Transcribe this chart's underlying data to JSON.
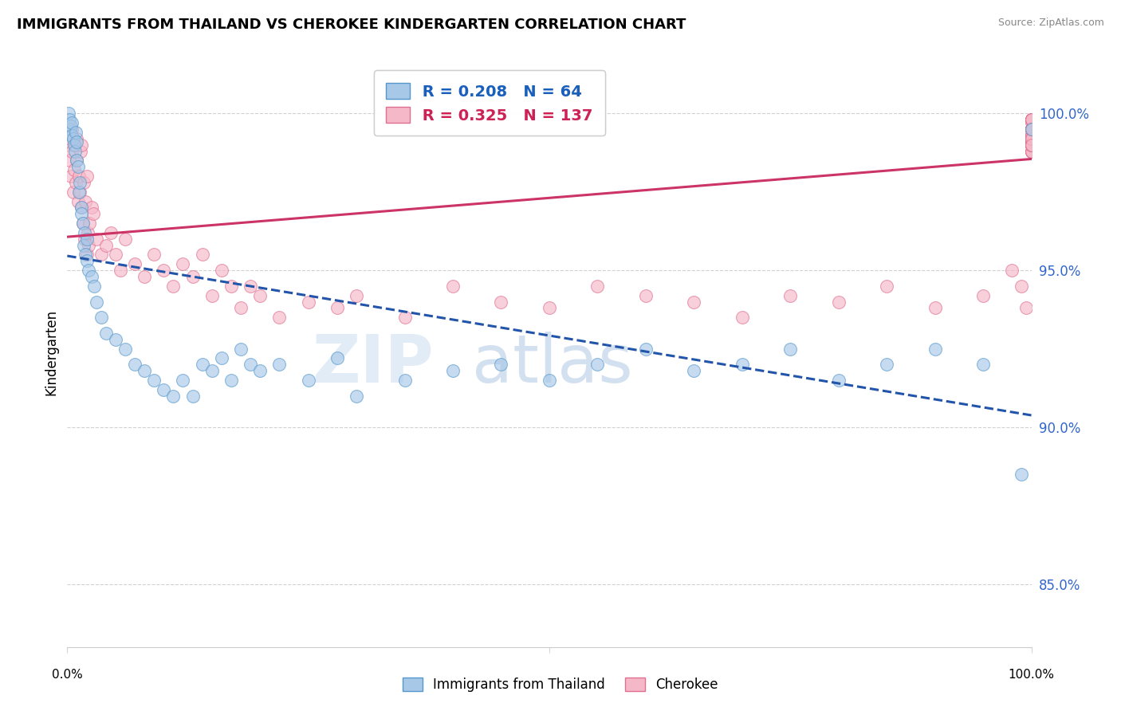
{
  "title": "IMMIGRANTS FROM THAILAND VS CHEROKEE KINDERGARTEN CORRELATION CHART",
  "source": "Source: ZipAtlas.com",
  "ylabel": "Kindergarten",
  "yticks": [
    85.0,
    90.0,
    95.0,
    100.0
  ],
  "xmin": 0.0,
  "xmax": 100.0,
  "ymin": 83.0,
  "ymax": 101.8,
  "blue_label": "Immigrants from Thailand",
  "pink_label": "Cherokee",
  "blue_R": 0.208,
  "blue_N": 64,
  "pink_R": 0.325,
  "pink_N": 137,
  "blue_color": "#a8c8e8",
  "blue_edge": "#5599cc",
  "pink_color": "#f5b8c8",
  "pink_edge": "#e07090",
  "trendline_blue": "#2255aa",
  "trendline_pink": "#cc3366",
  "legend_R_blue_color": "#1a5fbb",
  "legend_R_pink_color": "#cc2255",
  "blue_x": [
    0.1,
    0.2,
    0.3,
    0.4,
    0.5,
    0.5,
    0.6,
    0.7,
    0.8,
    0.9,
    1.0,
    1.0,
    1.1,
    1.2,
    1.3,
    1.5,
    1.5,
    1.6,
    1.7,
    1.8,
    1.9,
    2.0,
    2.0,
    2.2,
    2.5,
    2.8,
    3.0,
    3.5,
    4.0,
    5.0,
    6.0,
    7.0,
    8.0,
    9.0,
    10.0,
    11.0,
    12.0,
    13.0,
    14.0,
    15.0,
    16.0,
    17.0,
    18.0,
    19.0,
    20.0,
    22.0,
    25.0,
    28.0,
    30.0,
    35.0,
    40.0,
    45.0,
    50.0,
    55.0,
    60.0,
    65.0,
    70.0,
    75.0,
    80.0,
    85.0,
    90.0,
    95.0,
    99.0,
    100.0
  ],
  "blue_y": [
    100.0,
    99.8,
    99.5,
    99.6,
    99.7,
    99.3,
    99.2,
    99.0,
    98.8,
    99.4,
    98.5,
    99.1,
    98.3,
    97.5,
    97.8,
    97.0,
    96.8,
    96.5,
    95.8,
    96.2,
    95.5,
    95.3,
    96.0,
    95.0,
    94.8,
    94.5,
    94.0,
    93.5,
    93.0,
    92.8,
    92.5,
    92.0,
    91.8,
    91.5,
    91.2,
    91.0,
    91.5,
    91.0,
    92.0,
    91.8,
    92.2,
    91.5,
    92.5,
    92.0,
    91.8,
    92.0,
    91.5,
    92.2,
    91.0,
    91.5,
    91.8,
    92.0,
    91.5,
    92.0,
    92.5,
    91.8,
    92.0,
    92.5,
    91.5,
    92.0,
    92.5,
    92.0,
    88.5,
    99.5
  ],
  "pink_x": [
    0.1,
    0.2,
    0.3,
    0.4,
    0.5,
    0.5,
    0.6,
    0.7,
    0.8,
    0.9,
    1.0,
    1.0,
    1.1,
    1.2,
    1.3,
    1.4,
    1.5,
    1.5,
    1.6,
    1.7,
    1.8,
    1.9,
    2.0,
    2.0,
    2.1,
    2.2,
    2.3,
    2.5,
    2.7,
    3.0,
    3.5,
    4.0,
    4.5,
    5.0,
    5.5,
    6.0,
    7.0,
    8.0,
    9.0,
    10.0,
    11.0,
    12.0,
    13.0,
    14.0,
    15.0,
    16.0,
    17.0,
    18.0,
    19.0,
    20.0,
    22.0,
    25.0,
    28.0,
    30.0,
    35.0,
    40.0,
    45.0,
    50.0,
    55.0,
    60.0,
    65.0,
    70.0,
    75.0,
    80.0,
    85.0,
    90.0,
    95.0,
    98.0,
    99.0,
    99.5,
    100.0,
    100.0,
    100.0,
    100.0,
    100.0,
    100.0,
    100.0,
    100.0,
    100.0,
    100.0,
    100.0,
    100.0,
    100.0,
    100.0,
    100.0,
    100.0,
    100.0,
    100.0,
    100.0,
    100.0,
    100.0,
    100.0,
    100.0,
    100.0,
    100.0,
    100.0,
    100.0,
    100.0,
    100.0,
    100.0,
    100.0,
    100.0,
    100.0,
    100.0,
    100.0,
    100.0,
    100.0,
    100.0,
    100.0,
    100.0,
    100.0,
    100.0,
    100.0,
    100.0,
    100.0,
    100.0,
    100.0,
    100.0,
    100.0,
    100.0,
    100.0,
    100.0,
    100.0,
    100.0,
    100.0,
    100.0,
    100.0,
    100.0,
    100.0,
    100.0,
    100.0,
    100.0,
    100.0,
    100.0,
    100.0,
    100.0
  ],
  "pink_y": [
    99.0,
    98.5,
    99.2,
    98.0,
    98.8,
    99.5,
    97.5,
    98.2,
    99.0,
    97.8,
    98.5,
    99.2,
    97.2,
    98.0,
    97.5,
    98.8,
    97.0,
    99.0,
    96.5,
    97.8,
    96.0,
    97.2,
    95.5,
    98.0,
    96.2,
    95.8,
    96.5,
    97.0,
    96.8,
    96.0,
    95.5,
    95.8,
    96.2,
    95.5,
    95.0,
    96.0,
    95.2,
    94.8,
    95.5,
    95.0,
    94.5,
    95.2,
    94.8,
    95.5,
    94.2,
    95.0,
    94.5,
    93.8,
    94.5,
    94.2,
    93.5,
    94.0,
    93.8,
    94.2,
    93.5,
    94.5,
    94.0,
    93.8,
    94.5,
    94.2,
    94.0,
    93.5,
    94.2,
    94.0,
    94.5,
    93.8,
    94.2,
    95.0,
    94.5,
    93.8,
    99.8,
    99.5,
    99.2,
    99.0,
    99.5,
    99.3,
    98.8,
    99.5,
    99.0,
    98.8,
    99.3,
    99.1,
    99.5,
    99.2,
    98.8,
    99.0,
    99.5,
    99.3,
    99.1,
    99.8,
    99.0,
    99.5,
    99.2,
    98.8,
    99.3,
    99.0,
    99.5,
    99.2,
    99.8,
    99.1,
    99.5,
    99.3,
    99.0,
    99.8,
    99.2,
    99.5,
    99.0,
    99.3,
    99.7,
    99.5,
    99.2,
    98.8,
    99.0,
    99.5,
    99.3,
    99.8,
    99.2,
    99.5,
    99.0,
    99.3,
    99.8,
    99.5,
    99.2,
    99.0,
    99.5,
    99.3,
    99.8,
    99.2,
    99.5,
    99.0,
    99.3,
    99.8,
    99.5,
    99.2,
    99.0,
    99.5
  ]
}
